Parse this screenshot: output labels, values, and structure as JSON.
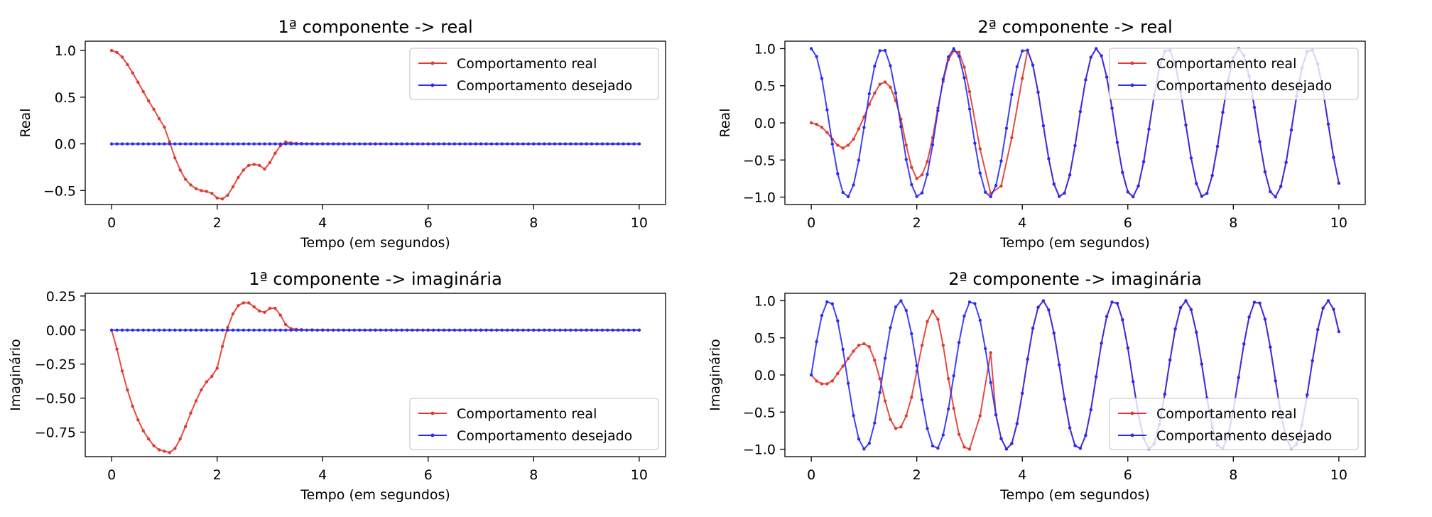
{
  "figure": {
    "colors": {
      "real": "#e03a2f",
      "desired": "#2b2bf2",
      "axes": "#000000",
      "legend_border": "#cccccc"
    }
  },
  "chart_data": [
    {
      "type": "line",
      "title": "1ª componente -> real",
      "xlabel": "Tempo (em segundos)",
      "ylabel": "Real",
      "xlim": [
        -0.5,
        10.5
      ],
      "ylim": [
        -0.65,
        1.1
      ],
      "xticks": [
        0,
        2,
        4,
        6,
        8,
        10
      ],
      "xtick_labels": [
        "0",
        "2",
        "4",
        "6",
        "8",
        "10"
      ],
      "yticks": [
        -0.5,
        0.0,
        0.5,
        1.0
      ],
      "ytick_labels": [
        "−0.5",
        "0.0",
        "0.5",
        "1.0"
      ],
      "grid": false,
      "legend": "top-right",
      "series": [
        {
          "name": "Comportamento real",
          "color": "#e03a2f",
          "x": [
            0,
            0.1,
            0.2,
            0.3,
            0.4,
            0.5,
            0.6,
            0.7,
            0.8,
            0.9,
            1.0,
            1.1,
            1.2,
            1.3,
            1.4,
            1.5,
            1.6,
            1.7,
            1.8,
            1.9,
            2.0,
            2.1,
            2.2,
            2.3,
            2.4,
            2.5,
            2.6,
            2.7,
            2.8,
            2.9,
            3.0,
            3.1,
            3.2,
            3.3,
            3.4,
            3.5,
            3.6,
            3.8,
            4.0,
            5.0,
            6.0,
            7.0,
            8.0,
            9.0,
            10.0
          ],
          "y": [
            1.0,
            0.98,
            0.93,
            0.85,
            0.76,
            0.66,
            0.56,
            0.46,
            0.37,
            0.27,
            0.18,
            0.02,
            -0.15,
            -0.28,
            -0.38,
            -0.44,
            -0.48,
            -0.5,
            -0.51,
            -0.53,
            -0.58,
            -0.59,
            -0.55,
            -0.46,
            -0.36,
            -0.28,
            -0.23,
            -0.22,
            -0.23,
            -0.27,
            -0.2,
            -0.1,
            -0.02,
            0.02,
            0.01,
            0.005,
            0.003,
            0.002,
            0.001,
            0,
            0,
            0,
            0,
            0,
            0
          ]
        },
        {
          "name": "Comportamento desejado",
          "color": "#2b2bf2",
          "x": [
            0,
            10
          ],
          "y": [
            0,
            0
          ],
          "step": 0.1
        }
      ]
    },
    {
      "type": "line",
      "title": "2ª componente -> real",
      "xlabel": "Tempo (em segundos)",
      "ylabel": "Real",
      "xlim": [
        -0.5,
        10.5
      ],
      "ylim": [
        -1.1,
        1.1
      ],
      "xticks": [
        0,
        2,
        4,
        6,
        8,
        10
      ],
      "xtick_labels": [
        "0",
        "2",
        "4",
        "6",
        "8",
        "10"
      ],
      "yticks": [
        -1.0,
        -0.5,
        0.0,
        0.5,
        1.0
      ],
      "ytick_labels": [
        "−1.0",
        "−0.5",
        "0.0",
        "0.5",
        "1.0"
      ],
      "grid": false,
      "legend": "top-right",
      "series": [
        {
          "name": "Comportamento real",
          "color": "#e03a2f",
          "x": [
            0,
            0.1,
            0.2,
            0.3,
            0.4,
            0.5,
            0.6,
            0.7,
            0.8,
            0.9,
            1.0,
            1.1,
            1.2,
            1.3,
            1.4,
            1.5,
            1.6,
            1.7,
            1.8,
            1.9,
            2.0,
            2.1,
            2.2,
            2.3,
            2.4,
            2.5,
            2.6,
            2.7,
            2.8,
            2.9,
            3.0,
            3.2,
            3.4,
            3.6,
            3.8,
            4.0
          ],
          "y": [
            0,
            -0.02,
            -0.06,
            -0.13,
            -0.22,
            -0.3,
            -0.34,
            -0.3,
            -0.22,
            -0.08,
            0.08,
            0.25,
            0.4,
            0.52,
            0.55,
            0.48,
            0.3,
            0.05,
            -0.3,
            -0.6,
            -0.75,
            -0.7,
            -0.52,
            -0.2,
            0.2,
            0.56,
            0.85,
            0.97,
            0.95,
            0.75,
            0.42,
            -0.35,
            -0.95,
            -0.85,
            -0.2,
            0.6
          ],
          "then": "cosine",
          "omega": 4.65
        },
        {
          "name": "Comportamento desejado",
          "color": "#2b2bf2",
          "function": "cos",
          "omega": 4.65,
          "phase": 0,
          "x_range": [
            0,
            10
          ],
          "step": 0.1
        }
      ]
    },
    {
      "type": "line",
      "title": "1ª componente -> imaginária",
      "xlabel": "Tempo (em segundos)",
      "ylabel": "Imaginário",
      "xlim": [
        -0.5,
        10.5
      ],
      "ylim": [
        -0.93,
        0.27
      ],
      "xticks": [
        0,
        2,
        4,
        6,
        8,
        10
      ],
      "xtick_labels": [
        "0",
        "2",
        "4",
        "6",
        "8",
        "10"
      ],
      "yticks": [
        -0.75,
        -0.5,
        -0.25,
        0.0,
        0.25
      ],
      "ytick_labels": [
        "−0.75",
        "−0.50",
        "−0.25",
        "0.00",
        "0.25"
      ],
      "grid": false,
      "legend": "bottom-right",
      "series": [
        {
          "name": "Comportamento real",
          "color": "#e03a2f",
          "x": [
            0,
            0.1,
            0.2,
            0.3,
            0.4,
            0.5,
            0.6,
            0.7,
            0.8,
            0.9,
            1.0,
            1.1,
            1.2,
            1.3,
            1.4,
            1.5,
            1.6,
            1.7,
            1.8,
            1.9,
            2.0,
            2.1,
            2.2,
            2.3,
            2.4,
            2.5,
            2.6,
            2.7,
            2.8,
            2.9,
            3.0,
            3.1,
            3.2,
            3.3,
            3.4,
            3.5,
            3.6,
            3.8,
            4.0,
            5.0,
            6.0,
            7.0,
            8.0,
            9.0,
            10.0
          ],
          "y": [
            0,
            -0.14,
            -0.3,
            -0.44,
            -0.56,
            -0.66,
            -0.74,
            -0.8,
            -0.85,
            -0.88,
            -0.89,
            -0.9,
            -0.87,
            -0.8,
            -0.71,
            -0.61,
            -0.52,
            -0.44,
            -0.38,
            -0.34,
            -0.28,
            -0.12,
            0.02,
            0.12,
            0.18,
            0.2,
            0.2,
            0.17,
            0.14,
            0.13,
            0.16,
            0.16,
            0.11,
            0.04,
            0.01,
            0.005,
            0.003,
            0.002,
            0.001,
            0,
            0,
            0,
            0,
            0,
            0
          ]
        },
        {
          "name": "Comportamento desejado",
          "color": "#2b2bf2",
          "x": [
            0,
            10
          ],
          "y": [
            0,
            0
          ],
          "step": 0.1
        }
      ]
    },
    {
      "type": "line",
      "title": "2ª componente -> imaginária",
      "xlabel": "Tempo (em segundos)",
      "ylabel": "Imaginário",
      "xlim": [
        -0.5,
        10.5
      ],
      "ylim": [
        -1.1,
        1.1
      ],
      "xticks": [
        0,
        2,
        4,
        6,
        8,
        10
      ],
      "xtick_labels": [
        "0",
        "2",
        "4",
        "6",
        "8",
        "10"
      ],
      "yticks": [
        -1.0,
        -0.5,
        0.0,
        0.5,
        1.0
      ],
      "ytick_labels": [
        "−1.0",
        "−0.5",
        "0.0",
        "0.5",
        "1.0"
      ],
      "grid": false,
      "legend": "bottom-right",
      "series": [
        {
          "name": "Comportamento real",
          "color": "#e03a2f",
          "x": [
            0,
            0.1,
            0.2,
            0.3,
            0.4,
            0.5,
            0.6,
            0.7,
            0.8,
            0.9,
            1.0,
            1.1,
            1.2,
            1.3,
            1.4,
            1.5,
            1.6,
            1.7,
            1.8,
            1.9,
            2.0,
            2.1,
            2.2,
            2.3,
            2.4,
            2.5,
            2.6,
            2.7,
            2.8,
            2.9,
            3.0,
            3.2,
            3.4
          ],
          "y": [
            0,
            -0.08,
            -0.12,
            -0.12,
            -0.08,
            0.02,
            0.12,
            0.22,
            0.32,
            0.4,
            0.42,
            0.38,
            0.2,
            -0.05,
            -0.35,
            -0.6,
            -0.72,
            -0.7,
            -0.55,
            -0.3,
            0.05,
            0.4,
            0.72,
            0.86,
            0.75,
            0.4,
            -0.05,
            -0.45,
            -0.8,
            -0.97,
            -1.0,
            -0.55,
            0.3
          ],
          "then": "sine",
          "omega": 4.65
        },
        {
          "name": "Comportamento desejado",
          "color": "#2b2bf2",
          "function": "sin",
          "omega": 4.65,
          "phase": 0,
          "x_range": [
            0,
            10
          ],
          "step": 0.1
        }
      ]
    }
  ]
}
